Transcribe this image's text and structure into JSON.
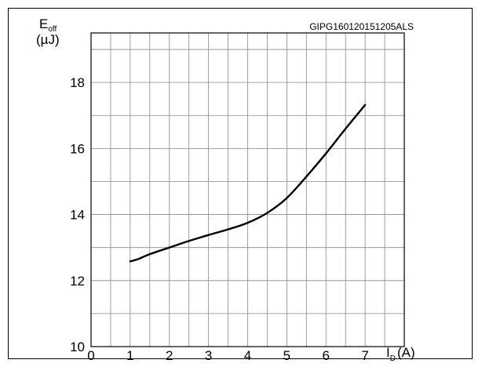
{
  "chart_data": {
    "type": "line",
    "figure_code": "GIPG160120151205ALS",
    "ylabel": {
      "main": "E",
      "sub": "off",
      "unit": "(µJ)"
    },
    "xlabel": {
      "main": "I",
      "sub": "D",
      "unit": "(A)"
    },
    "xlim": [
      0,
      8
    ],
    "ylim": [
      10,
      19.5
    ],
    "x_ticks": [
      0,
      1,
      2,
      3,
      4,
      5,
      6,
      7
    ],
    "y_ticks": [
      10,
      12,
      14,
      16,
      18
    ],
    "grid": true,
    "series": [
      {
        "x": [
          1.0,
          1.2,
          1.5,
          2.0,
          2.5,
          3.0,
          3.5,
          4.0,
          4.5,
          5.0,
          5.5,
          6.0,
          6.5,
          7.0
        ],
        "y": [
          12.58,
          12.65,
          12.8,
          13.0,
          13.2,
          13.38,
          13.55,
          13.75,
          14.05,
          14.5,
          15.15,
          15.85,
          16.6,
          17.32
        ]
      }
    ]
  }
}
